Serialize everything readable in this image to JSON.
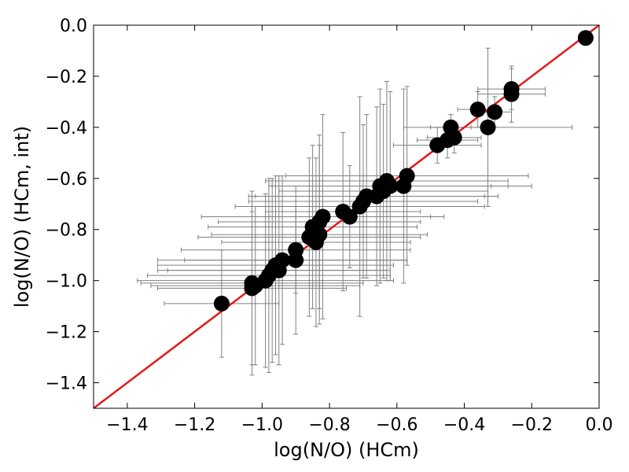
{
  "chart_data": {
    "type": "scatter",
    "xlabel": "log(N/O) (HCm)",
    "ylabel": "log(N/O) (HCm, int)",
    "xlim": [
      -1.5,
      0.0
    ],
    "ylim": [
      -1.5,
      0.0
    ],
    "xticks": [
      "−1.4",
      "−1.2",
      "−1.0",
      "−0.8",
      "−0.6",
      "−0.4",
      "−0.2",
      "0.0"
    ],
    "yticks": [
      "0.0",
      "−0.2",
      "−0.4",
      "−0.6",
      "−0.8",
      "−1.0",
      "−1.2",
      "−1.4"
    ],
    "xtick_values": [
      -1.4,
      -1.2,
      -1.0,
      -0.8,
      -0.6,
      -0.4,
      -0.2,
      0.0
    ],
    "ytick_values": [
      0.0,
      -0.2,
      -0.4,
      -0.6,
      -0.8,
      -1.0,
      -1.2,
      -1.4
    ],
    "grid": false,
    "identity_line": {
      "from": [
        -1.5,
        -1.5
      ],
      "to": [
        0.0,
        0.0
      ]
    },
    "colors": {
      "points": "#000000",
      "errorbars": "#808080",
      "identity_line": "#e31a1c"
    },
    "points": [
      {
        "x": -1.12,
        "y": -1.09,
        "xerr": 0.17,
        "yerr": 0.21
      },
      {
        "x": -1.03,
        "y": -1.01,
        "xerr": 0.33,
        "yerr": 0.36
      },
      {
        "x": -1.03,
        "y": -1.03,
        "xerr": 0.28,
        "yerr": 0.3
      },
      {
        "x": -1.02,
        "y": -1.02,
        "xerr": 0.31,
        "yerr": 0.31
      },
      {
        "x": -0.99,
        "y": -1.0,
        "xerr": 0.38,
        "yerr": 0.34
      },
      {
        "x": -0.98,
        "y": -0.98,
        "xerr": 0.36,
        "yerr": 0.38
      },
      {
        "x": -0.97,
        "y": -0.96,
        "xerr": 0.34,
        "yerr": 0.36
      },
      {
        "x": -0.96,
        "y": -0.94,
        "xerr": 0.35,
        "yerr": 0.35
      },
      {
        "x": -0.95,
        "y": -0.96,
        "xerr": 0.33,
        "yerr": 0.37
      },
      {
        "x": -0.94,
        "y": -0.92,
        "xerr": 0.37,
        "yerr": 0.33
      },
      {
        "x": -0.9,
        "y": -0.88,
        "xerr": 0.34,
        "yerr": 0.17
      },
      {
        "x": -0.9,
        "y": -0.92,
        "xerr": 0.33,
        "yerr": 0.29
      },
      {
        "x": -0.86,
        "y": -0.83,
        "xerr": 0.33,
        "yerr": 0.31
      },
      {
        "x": -0.85,
        "y": -0.79,
        "xerr": 0.31,
        "yerr": 0.32
      },
      {
        "x": -0.84,
        "y": -0.85,
        "xerr": 0.28,
        "yerr": 0.33
      },
      {
        "x": -0.83,
        "y": -0.82,
        "xerr": 0.32,
        "yerr": 0.35
      },
      {
        "x": -0.83,
        "y": -0.77,
        "xerr": 0.3,
        "yerr": 0.34
      },
      {
        "x": -0.82,
        "y": -0.75,
        "xerr": 0.36,
        "yerr": 0.4
      },
      {
        "x": -0.76,
        "y": -0.73,
        "xerr": 0.23,
        "yerr": 0.31
      },
      {
        "x": -0.74,
        "y": -0.75,
        "xerr": 0.24,
        "yerr": 0.2
      },
      {
        "x": -0.71,
        "y": -0.71,
        "xerr": 0.37,
        "yerr": 0.43
      },
      {
        "x": -0.7,
        "y": -0.69,
        "xerr": 0.34,
        "yerr": 0.3
      },
      {
        "x": -0.69,
        "y": -0.67,
        "xerr": 0.35,
        "yerr": 0.32
      },
      {
        "x": -0.66,
        "y": -0.67,
        "xerr": 0.36,
        "yerr": 0.35
      },
      {
        "x": -0.65,
        "y": -0.63,
        "xerr": 0.33,
        "yerr": 0.38
      },
      {
        "x": -0.64,
        "y": -0.65,
        "xerr": 0.31,
        "yerr": 0.34
      },
      {
        "x": -0.63,
        "y": -0.61,
        "xerr": 0.36,
        "yerr": 0.39
      },
      {
        "x": -0.62,
        "y": -0.63,
        "xerr": 0.35,
        "yerr": 0.37
      },
      {
        "x": -0.58,
        "y": -0.63,
        "xerr": 0.38,
        "yerr": 0.38
      },
      {
        "x": -0.57,
        "y": -0.59,
        "xerr": 0.36,
        "yerr": 0.35
      },
      {
        "x": -0.48,
        "y": -0.47,
        "xerr": 0.13,
        "yerr": 0.07
      },
      {
        "x": -0.45,
        "y": -0.45,
        "xerr": 0.09,
        "yerr": 0.07
      },
      {
        "x": -0.44,
        "y": -0.4,
        "xerr": 0.06,
        "yerr": 0.05
      },
      {
        "x": -0.43,
        "y": -0.44,
        "xerr": 0.08,
        "yerr": 0.06
      },
      {
        "x": -0.36,
        "y": -0.33,
        "xerr": 0.06,
        "yerr": 0.07
      },
      {
        "x": -0.33,
        "y": -0.4,
        "xerr": 0.25,
        "yerr": 0.31
      },
      {
        "x": -0.31,
        "y": -0.34,
        "xerr": 0.05,
        "yerr": 0.06
      },
      {
        "x": -0.26,
        "y": -0.27,
        "xerr": 0.1,
        "yerr": 0.11
      },
      {
        "x": -0.26,
        "y": -0.25,
        "xerr": 0.1,
        "yerr": 0.08
      },
      {
        "x": -0.04,
        "y": -0.05,
        "xerr": 0.02,
        "yerr": 0.01
      }
    ]
  }
}
